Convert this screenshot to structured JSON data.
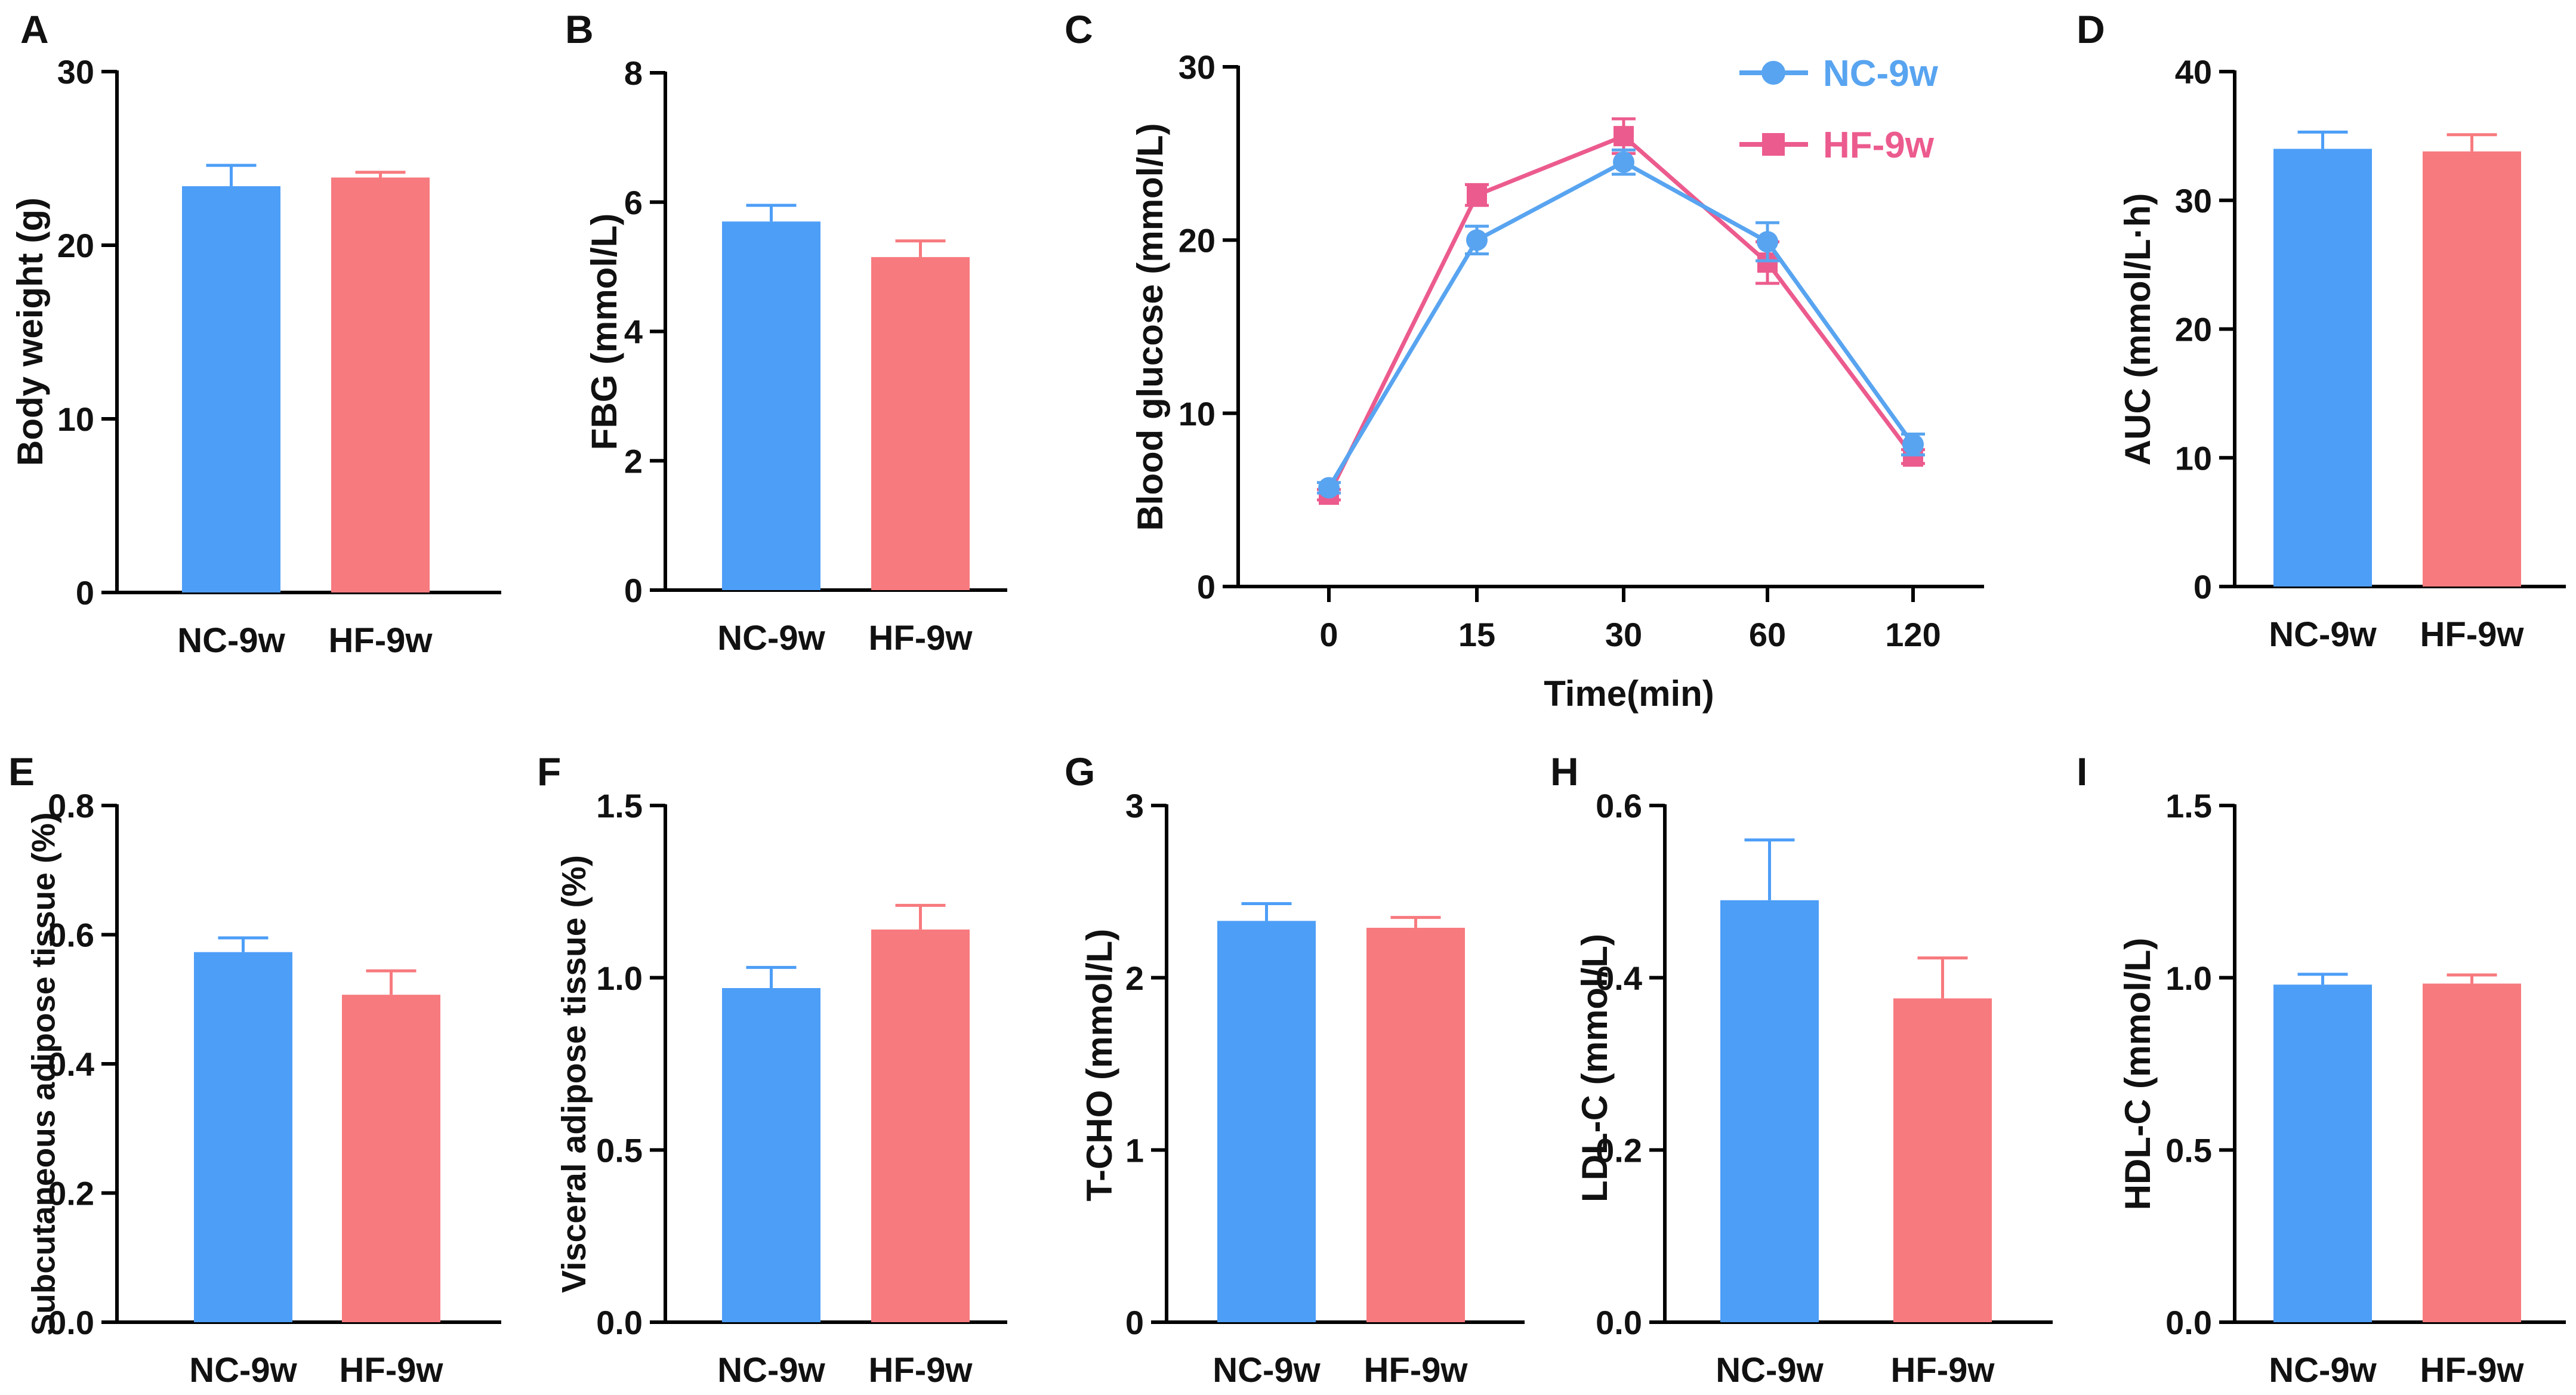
{
  "colors": {
    "nc": "#4d9ef7",
    "hf": "#f77a7e",
    "nc_line": "#58a4f0",
    "hf_line": "#ec5b8e",
    "axis": "#000000"
  },
  "chart_data": [
    {
      "panel": "A",
      "type": "bar",
      "categories": [
        "NC-9w",
        "HF-9w"
      ],
      "values": [
        23.4,
        23.9
      ],
      "errors": [
        1.2,
        0.3
      ],
      "ylabel": "Body weight (g)",
      "ylim": [
        0,
        30
      ],
      "yticks": [
        0,
        10,
        20,
        30
      ],
      "tick_labels": [
        "0",
        "10",
        "20",
        "30"
      ]
    },
    {
      "panel": "B",
      "type": "bar",
      "categories": [
        "NC-9w",
        "HF-9w"
      ],
      "values": [
        5.7,
        5.15
      ],
      "errors": [
        0.25,
        0.25
      ],
      "ylabel": "FBG (mmol/L)",
      "ylim": [
        0,
        8
      ],
      "yticks": [
        0,
        2,
        4,
        6,
        8
      ],
      "tick_labels": [
        "0",
        "2",
        "4",
        "6",
        "8"
      ]
    },
    {
      "panel": "C",
      "type": "line",
      "x": [
        "0",
        "15",
        "30",
        "60",
        "120"
      ],
      "xlabel": "Time(min)",
      "ylabel": "Blood glucose (mmol/L)",
      "ylim": [
        0,
        30
      ],
      "yticks": [
        0,
        10,
        20,
        30
      ],
      "tick_labels": [
        "0",
        "10",
        "20",
        "30"
      ],
      "legend_position": "top-right",
      "series": [
        {
          "name": "NC-9w",
          "marker": "circle",
          "values": [
            5.7,
            20.0,
            24.5,
            19.9,
            8.2
          ],
          "errors": [
            0.3,
            0.8,
            0.7,
            1.1,
            0.6
          ]
        },
        {
          "name": "HF-9w",
          "marker": "square",
          "values": [
            5.3,
            22.6,
            26.0,
            18.7,
            7.5
          ],
          "errors": [
            0.3,
            0.6,
            1.0,
            1.2,
            0.4
          ]
        }
      ]
    },
    {
      "panel": "D",
      "type": "bar",
      "categories": [
        "NC-9w",
        "HF-9w"
      ],
      "values": [
        34.0,
        33.8
      ],
      "errors": [
        1.3,
        1.3
      ],
      "ylabel": "AUC (mmol/L·h)",
      "ylim": [
        0,
        40
      ],
      "yticks": [
        0,
        10,
        20,
        30,
        40
      ],
      "tick_labels": [
        "0",
        "10",
        "20",
        "30",
        "40"
      ]
    },
    {
      "panel": "E",
      "type": "bar",
      "categories": [
        "NC-9w",
        "HF-9w"
      ],
      "values": [
        0.573,
        0.507
      ],
      "errors": [
        0.022,
        0.037
      ],
      "ylabel": "Subcutaneous adipose tissue (%)",
      "ylim": [
        0,
        0.8
      ],
      "yticks": [
        0,
        0.2,
        0.4,
        0.6,
        0.8
      ],
      "tick_labels": [
        "0.0",
        "0.2",
        "0.4",
        "0.6",
        "0.8"
      ]
    },
    {
      "panel": "F",
      "type": "bar",
      "categories": [
        "NC-9w",
        "HF-9w"
      ],
      "values": [
        0.97,
        1.14
      ],
      "errors": [
        0.06,
        0.07
      ],
      "ylabel": "Visceral adipose tissue (%)",
      "ylim": [
        0,
        1.5
      ],
      "yticks": [
        0,
        0.5,
        1.0,
        1.5
      ],
      "tick_labels": [
        "0.0",
        "0.5",
        "1.0",
        "1.5"
      ]
    },
    {
      "panel": "G",
      "type": "bar",
      "categories": [
        "NC-9w",
        "HF-9w"
      ],
      "values": [
        2.33,
        2.29
      ],
      "errors": [
        0.1,
        0.06
      ],
      "ylabel": "T-CHO (mmol/L)",
      "ylim": [
        0,
        3
      ],
      "yticks": [
        0,
        1,
        2,
        3
      ],
      "tick_labels": [
        "0",
        "1",
        "2",
        "3"
      ]
    },
    {
      "panel": "H",
      "type": "bar",
      "categories": [
        "NC-9w",
        "HF-9w"
      ],
      "values": [
        0.49,
        0.376
      ],
      "errors": [
        0.07,
        0.047
      ],
      "ylabel": "LDL-C (mmol/L)",
      "ylim": [
        0,
        0.6
      ],
      "yticks": [
        0,
        0.2,
        0.4,
        0.6
      ],
      "tick_labels": [
        "0.0",
        "0.2",
        "0.4",
        "0.6"
      ]
    },
    {
      "panel": "I",
      "type": "bar",
      "categories": [
        "NC-9w",
        "HF-9w"
      ],
      "values": [
        0.98,
        0.983
      ],
      "errors": [
        0.03,
        0.025
      ],
      "ylabel": "HDL-C (mmol/L)",
      "ylim": [
        0,
        1.5
      ],
      "yticks": [
        0,
        0.5,
        1.0,
        1.5
      ],
      "tick_labels": [
        "0.0",
        "0.5",
        "1.0",
        "1.5"
      ]
    }
  ]
}
